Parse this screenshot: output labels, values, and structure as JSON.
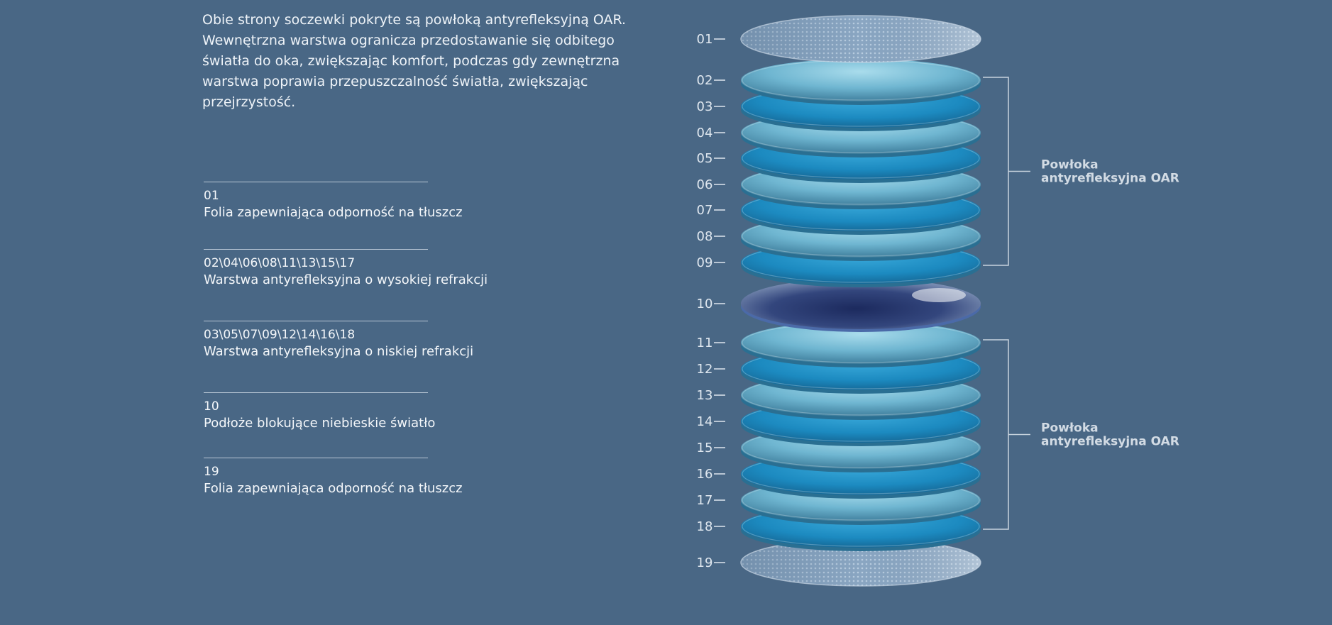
{
  "intro_text": "Obie strony soczewki pokryte są powłoką antyrefleksyjną OAR. Wewnętrzna warstwa ogranicza przedostawanie się odbitego światła do oka, zwiększając komfort, podczas gdy zewnętrzna warstwa poprawia przepuszczalność światła, zwiększając przejrzystość.",
  "legend": [
    {
      "number": "01",
      "description": "Folia zapewniająca odporność na tłuszcz"
    },
    {
      "number": "02\\04\\06\\08\\11\\13\\15\\17",
      "description": "Warstwa antyrefleksyjna o wysokiej refrakcji"
    },
    {
      "number": "03\\05\\07\\09\\12\\14\\16\\18",
      "description": "Warstwa antyrefleksyjna o niskiej refrakcji"
    },
    {
      "number": "10",
      "description": "Podłoże blokujące niebieskie światło"
    },
    {
      "number": "19",
      "description": "Folia zapewniająca odporność na tłuszcz"
    }
  ],
  "layers": [
    {
      "id": "01",
      "kind": "film"
    },
    {
      "id": "02",
      "kind": "high"
    },
    {
      "id": "03",
      "kind": "low"
    },
    {
      "id": "04",
      "kind": "high"
    },
    {
      "id": "05",
      "kind": "low"
    },
    {
      "id": "06",
      "kind": "high"
    },
    {
      "id": "07",
      "kind": "low"
    },
    {
      "id": "08",
      "kind": "high"
    },
    {
      "id": "09",
      "kind": "low"
    },
    {
      "id": "10",
      "kind": "substrate"
    },
    {
      "id": "11",
      "kind": "high"
    },
    {
      "id": "12",
      "kind": "low"
    },
    {
      "id": "13",
      "kind": "high"
    },
    {
      "id": "14",
      "kind": "low"
    },
    {
      "id": "15",
      "kind": "high"
    },
    {
      "id": "16",
      "kind": "low"
    },
    {
      "id": "17",
      "kind": "high"
    },
    {
      "id": "18",
      "kind": "low"
    },
    {
      "id": "19",
      "kind": "film"
    }
  ],
  "brackets": [
    {
      "from": "02",
      "to": "09",
      "label_line1": "Powłoka",
      "label_line2": "antyrefleksyjna OAR"
    },
    {
      "from": "11",
      "to": "18",
      "label_line1": "Powłoka",
      "label_line2": "antyrefleksyjna OAR"
    }
  ],
  "colors": {
    "background": "#496785",
    "high_refraction": "#7fc4dc",
    "low_refraction": "#1f8fc4",
    "substrate": "#2b3d72",
    "film": "#9db6cf"
  }
}
